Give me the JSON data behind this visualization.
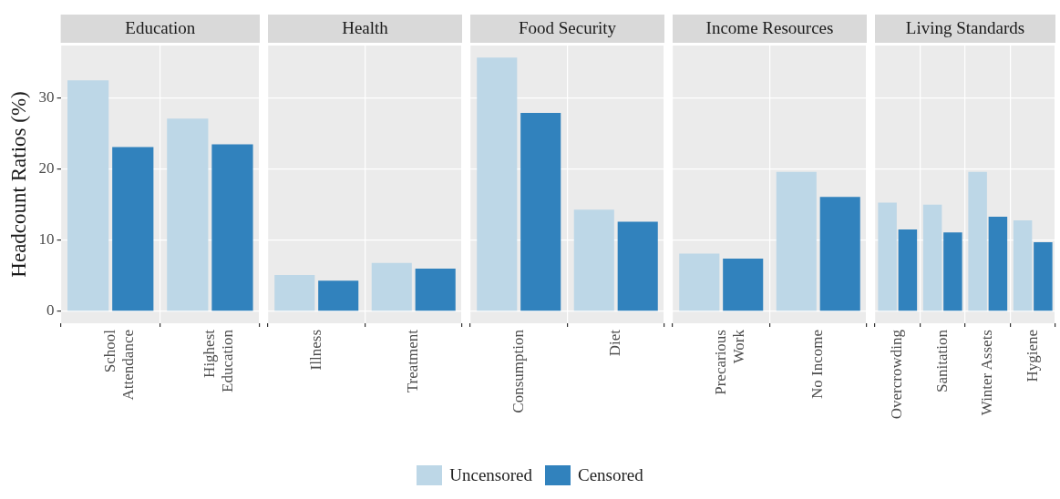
{
  "chart_data": [
    {
      "type": "bar",
      "title": "Education",
      "ylabel": "Headcount Ratios (%)",
      "categories": [
        "School Attendance",
        "Highest Education"
      ],
      "series": [
        {
          "name": "Uncensored",
          "color": "#bdd7e7",
          "values": [
            32.5,
            27.1
          ]
        },
        {
          "name": "Censored",
          "color": "#3182bd",
          "values": [
            23.1,
            23.5
          ]
        }
      ],
      "ylim": [
        -1.7,
        37.4
      ],
      "yticks": [
        0,
        10,
        20,
        30
      ],
      "grid": true,
      "legend": "bottom"
    },
    {
      "type": "bar",
      "title": "Health",
      "categories": [
        "Illness",
        "Treatment"
      ],
      "series": [
        {
          "color": "#bdd7e7",
          "values": [
            5.1,
            6.8
          ]
        },
        {
          "color": "#3182bd",
          "values": [
            4.3,
            6.0
          ]
        }
      ],
      "ylim": [
        -1.7,
        37.4
      ],
      "yticks": [
        0,
        10,
        20,
        30
      ],
      "grid": true,
      "tick_labels": "x"
    },
    {
      "type": "bar",
      "title": "Food Security",
      "categories": [
        "Consumption",
        "Diet"
      ],
      "series": [
        {
          "color": "#bdd7e7",
          "values": [
            35.7,
            14.3
          ]
        },
        {
          "color": "#3182bd",
          "values": [
            27.9,
            12.6
          ]
        }
      ],
      "ylim": [
        -1.7,
        37.4
      ],
      "yticks": [
        0,
        10,
        20,
        30
      ],
      "grid": true,
      "tick_labels": "x"
    },
    {
      "type": "bar",
      "title": "Income Resources",
      "categories": [
        "Precarious Work",
        "No Income"
      ],
      "series": [
        {
          "color": "#bdd7e7",
          "values": [
            8.1,
            19.6
          ]
        },
        {
          "color": "#3182bd",
          "values": [
            7.4,
            16.1
          ]
        }
      ],
      "ylim": [
        -1.7,
        37.4
      ],
      "yticks": [
        0,
        10,
        20,
        30
      ],
      "grid": true,
      "tick_labels": "x"
    },
    {
      "type": "bar",
      "title": "Living Standards",
      "categories": [
        "Overcrowding",
        "Sanitation",
        "Winter Assets",
        "Hygiene"
      ],
      "series": [
        {
          "color": "#bdd7e7",
          "values": [
            15.3,
            15.0,
            19.6,
            12.8
          ]
        },
        {
          "color": "#3182bd",
          "values": [
            11.5,
            11.1,
            13.3,
            9.7
          ]
        }
      ],
      "ylim": [
        -1.7,
        37.4
      ],
      "yticks": [
        0,
        10,
        20,
        30
      ],
      "grid": true,
      "tick_labels": "x"
    }
  ]
}
